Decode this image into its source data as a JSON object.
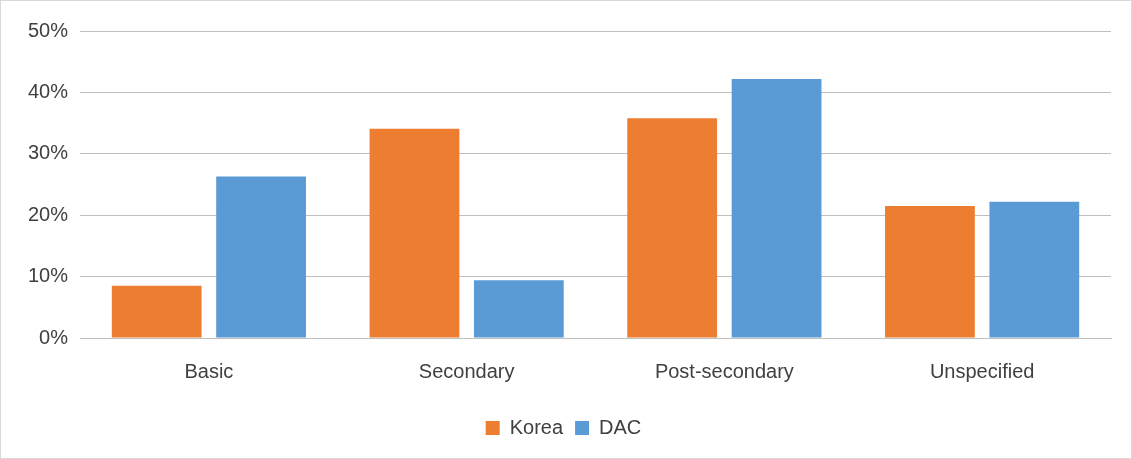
{
  "chart_data": {
    "type": "bar",
    "categories": [
      "Basic",
      "Secondary",
      "Post-secondary",
      "Unspecified"
    ],
    "series": [
      {
        "name": "Korea",
        "color": "#ed7d31",
        "values": [
          8.5,
          34.1,
          35.8,
          21.5
        ]
      },
      {
        "name": "DAC",
        "color": "#5b9bd5",
        "values": [
          26.3,
          9.4,
          42.2,
          22.2
        ]
      }
    ],
    "ylim": [
      0,
      50
    ],
    "yticks": [
      {
        "value": 0,
        "label": "0%"
      },
      {
        "value": 10,
        "label": "10%"
      },
      {
        "value": 20,
        "label": "20%"
      },
      {
        "value": 30,
        "label": "30%"
      },
      {
        "value": 40,
        "label": "40%"
      },
      {
        "value": 50,
        "label": "50%"
      }
    ],
    "grid": "y",
    "legend": "bottom"
  }
}
